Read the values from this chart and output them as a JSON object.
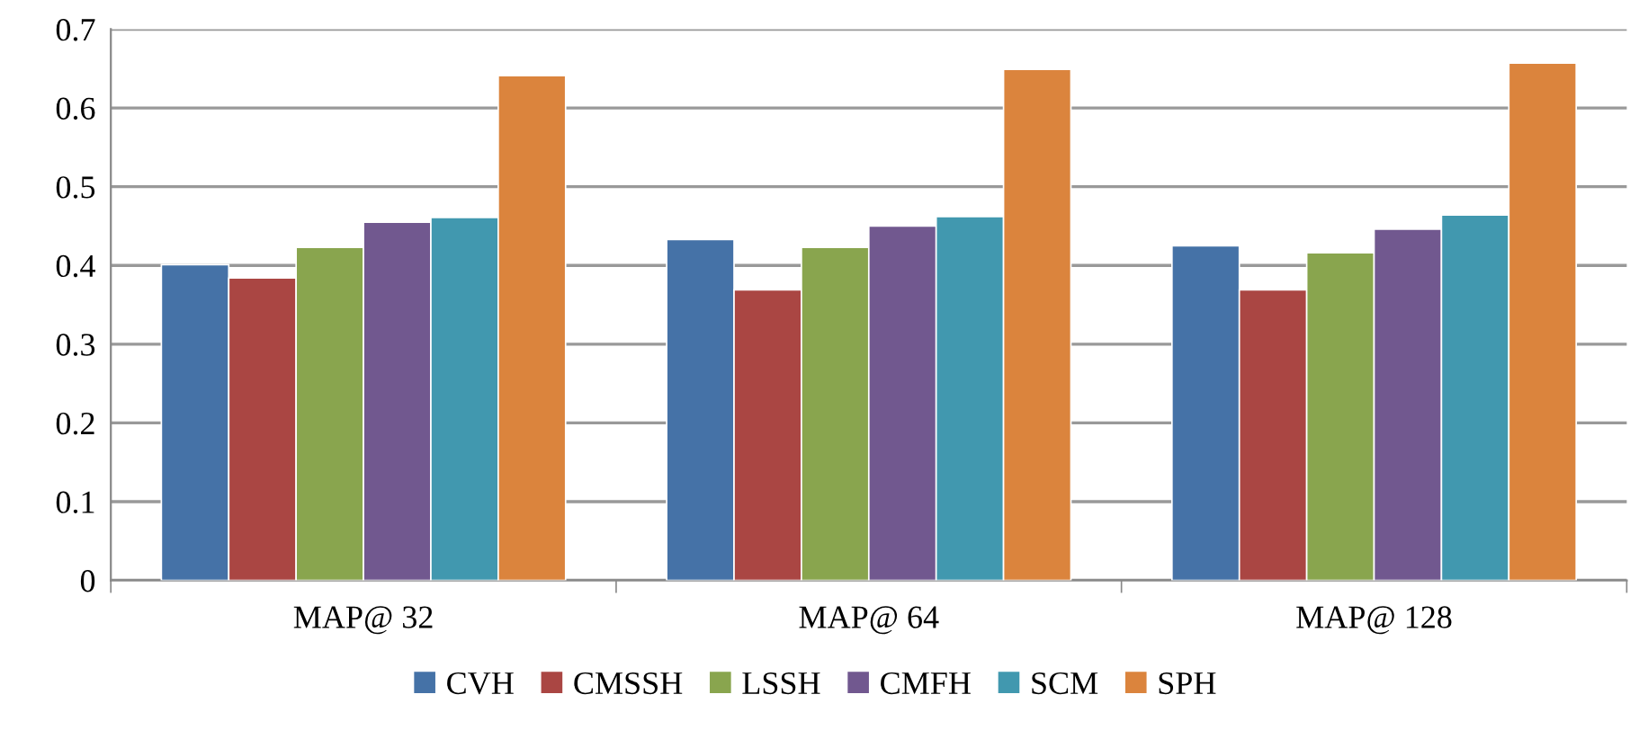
{
  "chart_data": {
    "type": "bar",
    "categories": [
      "MAP@ 32",
      "MAP@ 64",
      "MAP@ 128"
    ],
    "series": [
      {
        "name": "CVH",
        "color": "#4572a7",
        "values": [
          0.401,
          0.433,
          0.425
        ]
      },
      {
        "name": "CMSSH",
        "color": "#aa4643",
        "values": [
          0.384,
          0.369,
          0.369
        ]
      },
      {
        "name": "LSSH",
        "color": "#89a54e",
        "values": [
          0.423,
          0.423,
          0.416
        ]
      },
      {
        "name": "CMFH",
        "color": "#71588f",
        "values": [
          0.455,
          0.45,
          0.446
        ]
      },
      {
        "name": "SCM",
        "color": "#4198af",
        "values": [
          0.461,
          0.462,
          0.464
        ]
      },
      {
        "name": "SPH",
        "color": "#db843d",
        "values": [
          0.641,
          0.649,
          0.657
        ]
      }
    ],
    "ylim": [
      0,
      0.7
    ],
    "yticks": [
      0,
      0.1,
      0.2,
      0.3,
      0.4,
      0.5,
      0.6,
      0.7
    ],
    "grid": "y",
    "legend": "bottom"
  }
}
